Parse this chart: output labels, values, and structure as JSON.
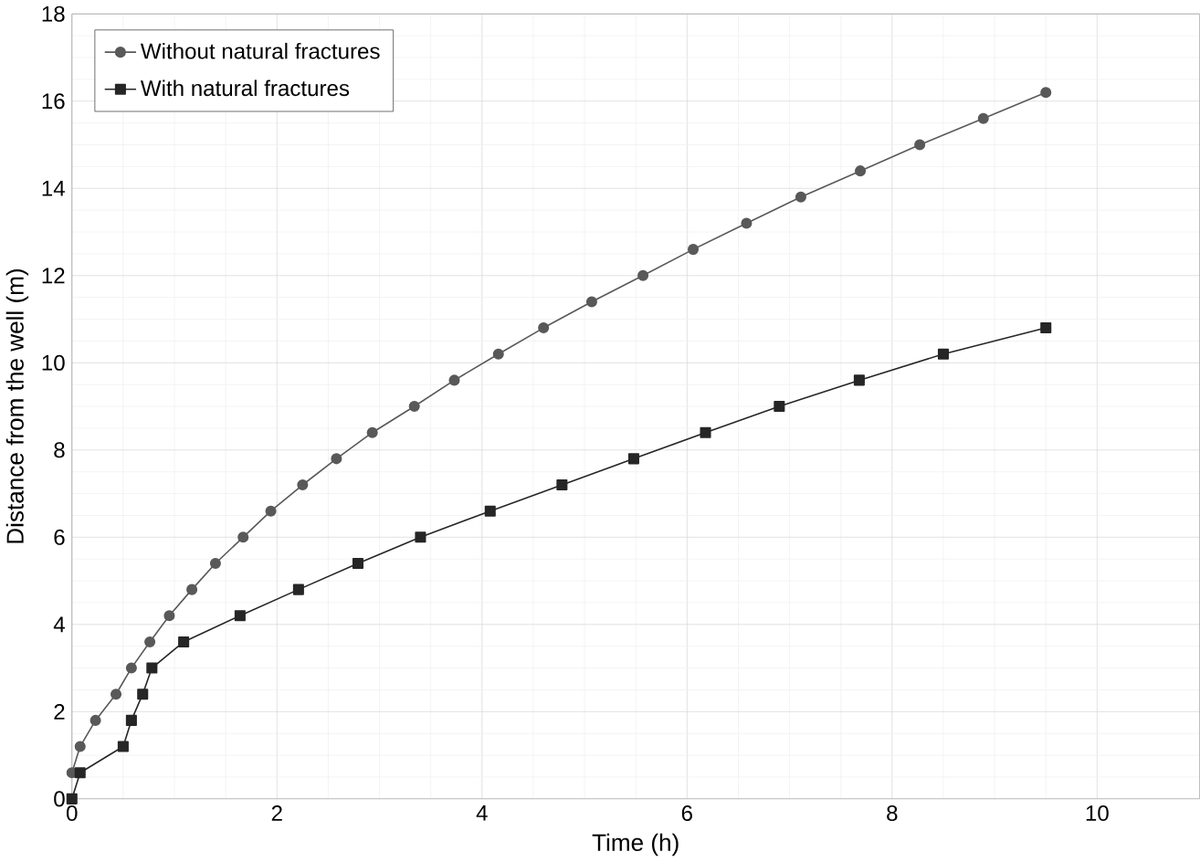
{
  "chart_data": {
    "type": "line",
    "xlabel": "Time (h)",
    "ylabel": "Distance from the well (m)",
    "xlim": [
      0,
      11
    ],
    "ylim": [
      0,
      18
    ],
    "xticks": [
      0,
      2,
      4,
      6,
      8,
      10
    ],
    "yticks": [
      0,
      2,
      4,
      6,
      8,
      10,
      12,
      14,
      16,
      18
    ],
    "grid": true,
    "legend": "top left",
    "line_style": "solid",
    "series": [
      {
        "name": "Without natural fractures",
        "color": "#595959",
        "marker": "circle",
        "x": [
          0,
          0.08,
          0.23,
          0.43,
          0.58,
          0.76,
          0.95,
          1.17,
          1.4,
          1.67,
          1.94,
          2.25,
          2.58,
          2.93,
          3.34,
          3.73,
          4.16,
          4.6,
          5.07,
          5.57,
          6.06,
          6.58,
          7.11,
          7.69,
          8.27,
          8.89,
          9.5
        ],
        "values": [
          0.6,
          1.2,
          1.8,
          2.4,
          3.0,
          3.6,
          4.2,
          4.8,
          5.4,
          6.0,
          6.6,
          7.2,
          7.8,
          8.4,
          9.0,
          9.6,
          10.2,
          10.8,
          11.4,
          12.0,
          12.6,
          13.2,
          13.8,
          14.4,
          15.0,
          15.6,
          16.2
        ]
      },
      {
        "name": "With natural fractures",
        "color": "#262626",
        "marker": "square",
        "x": [
          0,
          0.08,
          0.5,
          0.58,
          0.69,
          0.78,
          1.09,
          1.64,
          2.21,
          2.79,
          3.4,
          4.08,
          4.78,
          5.48,
          6.18,
          6.9,
          7.68,
          8.5,
          9.5
        ],
        "values": [
          0,
          0.6,
          1.2,
          1.8,
          2.4,
          3.0,
          3.6,
          4.2,
          4.8,
          5.4,
          6.0,
          6.6,
          7.2,
          7.8,
          8.4,
          9.0,
          9.6,
          10.2,
          10.8
        ]
      }
    ]
  }
}
